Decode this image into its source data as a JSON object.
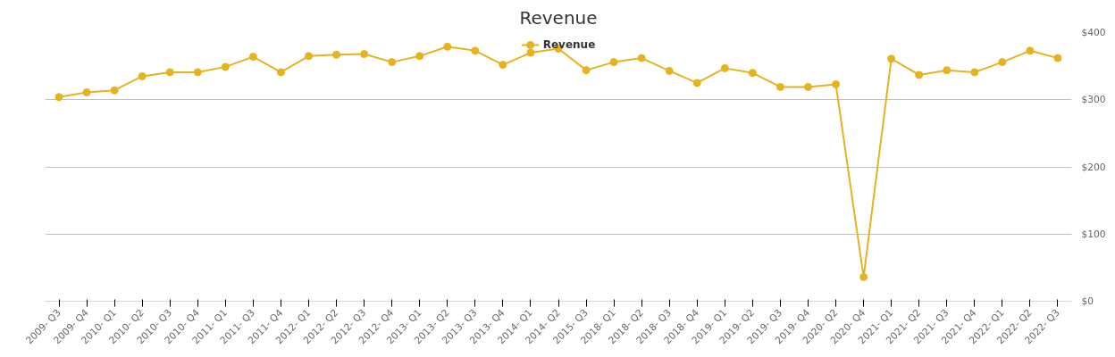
{
  "chart_data": {
    "type": "line",
    "title": "Revenue",
    "categories": [
      "2009- Q3",
      "2009- Q4",
      "2010- Q1",
      "2010- Q2",
      "2010- Q3",
      "2010- Q4",
      "2011- Q1",
      "2011- Q3",
      "2011- Q4",
      "2012- Q1",
      "2012- Q2",
      "2012- Q3",
      "2012- Q4",
      "2013- Q1",
      "2013- Q2",
      "2013- Q3",
      "2013- Q4",
      "2014- Q1",
      "2014- Q2",
      "2015- Q3",
      "2018- Q1",
      "2018- Q2",
      "2018- Q3",
      "2018- Q4",
      "2019- Q1",
      "2019- Q2",
      "2019- Q3",
      "2019- Q4",
      "2020- Q2",
      "2020- Q4",
      "2021- Q1",
      "2021- Q2",
      "2021- Q3",
      "2021- Q4",
      "2022- Q1",
      "2022- Q2",
      "2022- Q3"
    ],
    "series": [
      {
        "name": "Revenue",
        "color": "#e6b31e",
        "values": [
          304,
          311,
          314,
          335,
          341,
          341,
          349,
          364,
          341,
          365,
          367,
          368,
          356,
          365,
          379,
          373,
          352,
          370,
          376,
          344,
          356,
          362,
          343,
          325,
          347,
          340,
          319,
          319,
          323,
          36,
          361,
          337,
          344,
          341,
          356,
          373,
          362
        ]
      }
    ],
    "ylim": [
      0,
      400
    ],
    "yticks": [
      {
        "value": 0,
        "label": "$0"
      },
      {
        "value": 100,
        "label": "$100"
      },
      {
        "value": 200,
        "label": "$200"
      },
      {
        "value": 300,
        "label": "$300"
      },
      {
        "value": 400,
        "label": "$400"
      }
    ],
    "grid": "y",
    "legend": "top",
    "marker": "circle",
    "line_style": "solid"
  }
}
